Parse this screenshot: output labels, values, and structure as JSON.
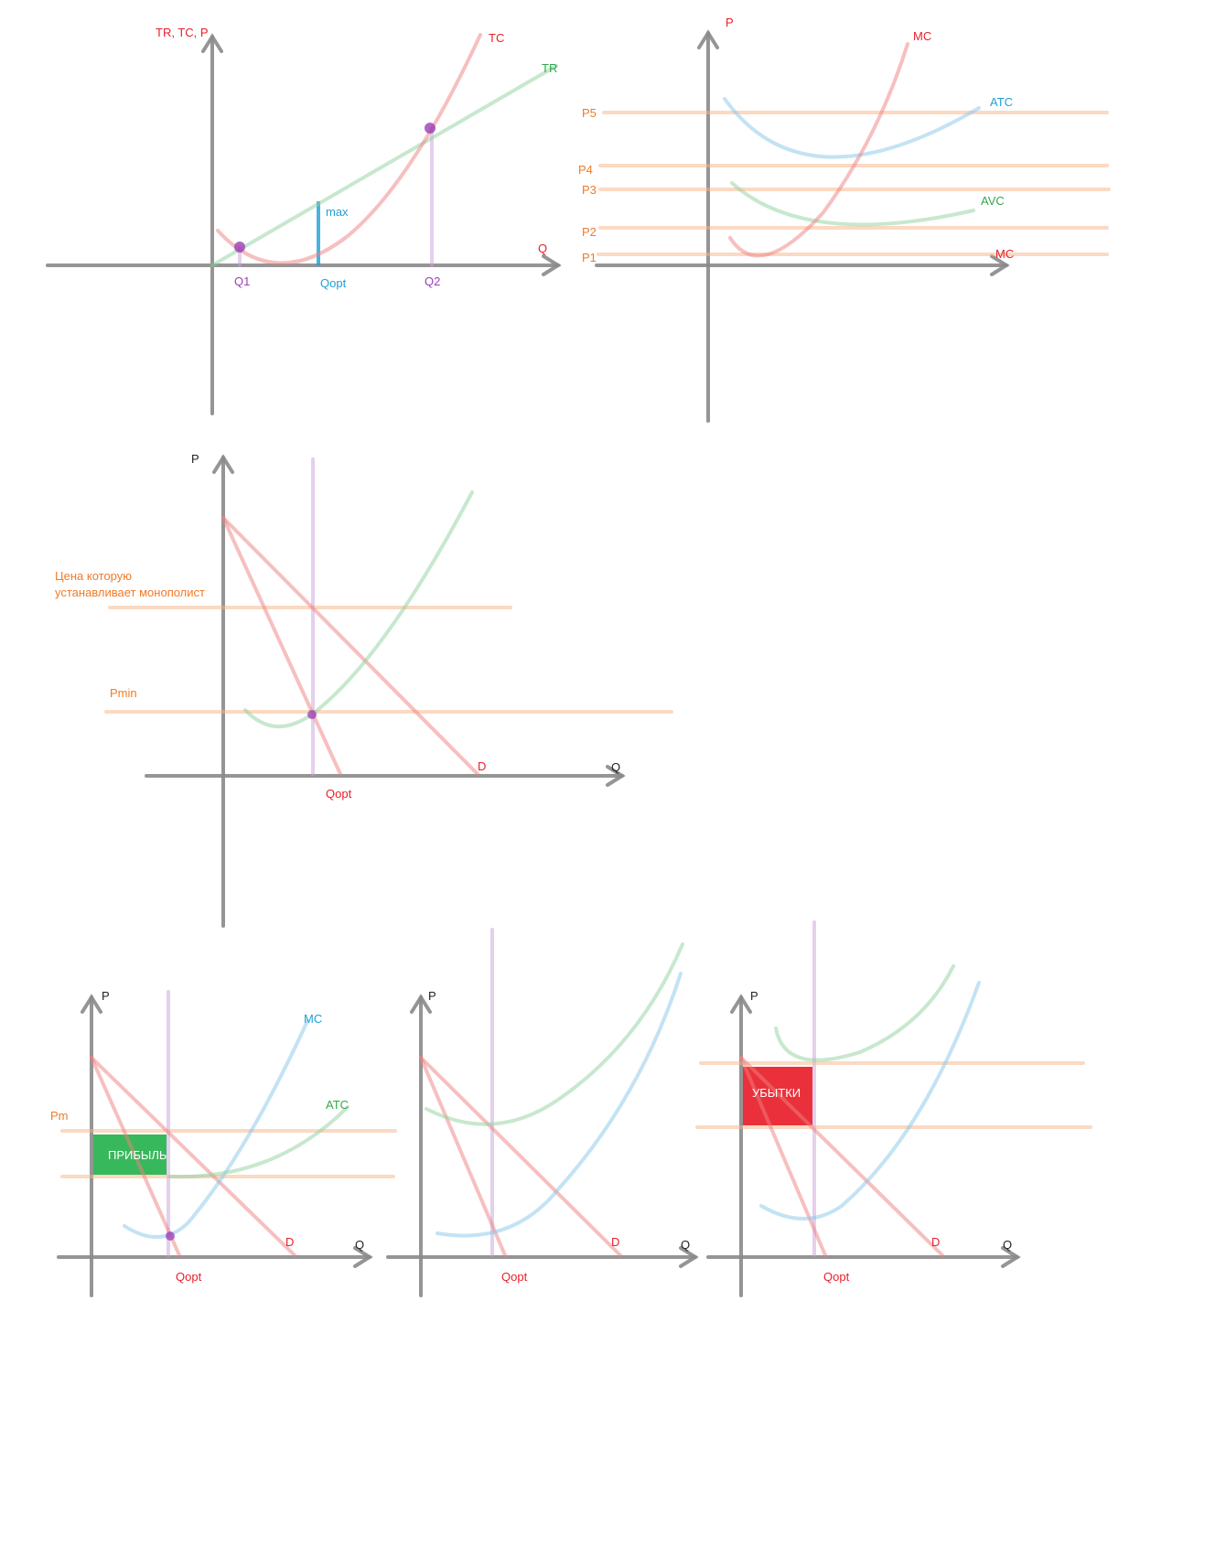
{
  "colors": {
    "axis": "#888888",
    "red": "#f08080",
    "green": "#8fd19e",
    "blue": "#88c8ea",
    "orange": "#f8b488",
    "purple": "#c9a0dc",
    "label_red": "#e8202a",
    "label_green": "#2eaa4a",
    "label_blue": "#1ea0d8",
    "label_orange": "#f07a28",
    "label_purple": "#9b3fb5",
    "profit_fill": "#22b04a",
    "loss_fill": "#e8202a"
  },
  "diagram1": {
    "y_axis_label": "TR, TC, P",
    "x_axis_label": "Q",
    "tc_label": "TC",
    "tr_label": "TR",
    "max_label": "max",
    "q1_label": "Q1",
    "qopt_label": "Qopt",
    "q2_label": "Q2"
  },
  "diagram2": {
    "y_axis_label": "P",
    "mc_label_top": "MC",
    "atc_label": "ATC",
    "avc_label": "AVC",
    "mc_label_bottom": "MC",
    "price_levels": [
      "P5",
      "P4",
      "P3",
      "P2",
      "P1"
    ]
  },
  "diagram3": {
    "y_axis_label": "P",
    "x_axis_label": "Q",
    "monopoly_price_line1": "Цена которую",
    "monopoly_price_line2": "устанавливает монополист",
    "pmin_label": "Pmin",
    "d_label": "D",
    "qopt_label": "Qopt"
  },
  "diagram4": {
    "y_axis_label": "P",
    "x_axis_label": "Q",
    "mc_label": "MC",
    "atc_label": "ATC",
    "pm_label": "Pm",
    "profit_label": "ПРИБЫЛЬ",
    "d_label": "D",
    "qopt_label": "Qopt"
  },
  "diagram5": {
    "y_axis_label": "P",
    "x_axis_label": "Q",
    "d_label": "D",
    "qopt_label": "Qopt"
  },
  "diagram6": {
    "y_axis_label": "P",
    "x_axis_label": "Q",
    "loss_label": "УБЫТКИ",
    "d_label": "D",
    "qopt_label": "Qopt"
  }
}
